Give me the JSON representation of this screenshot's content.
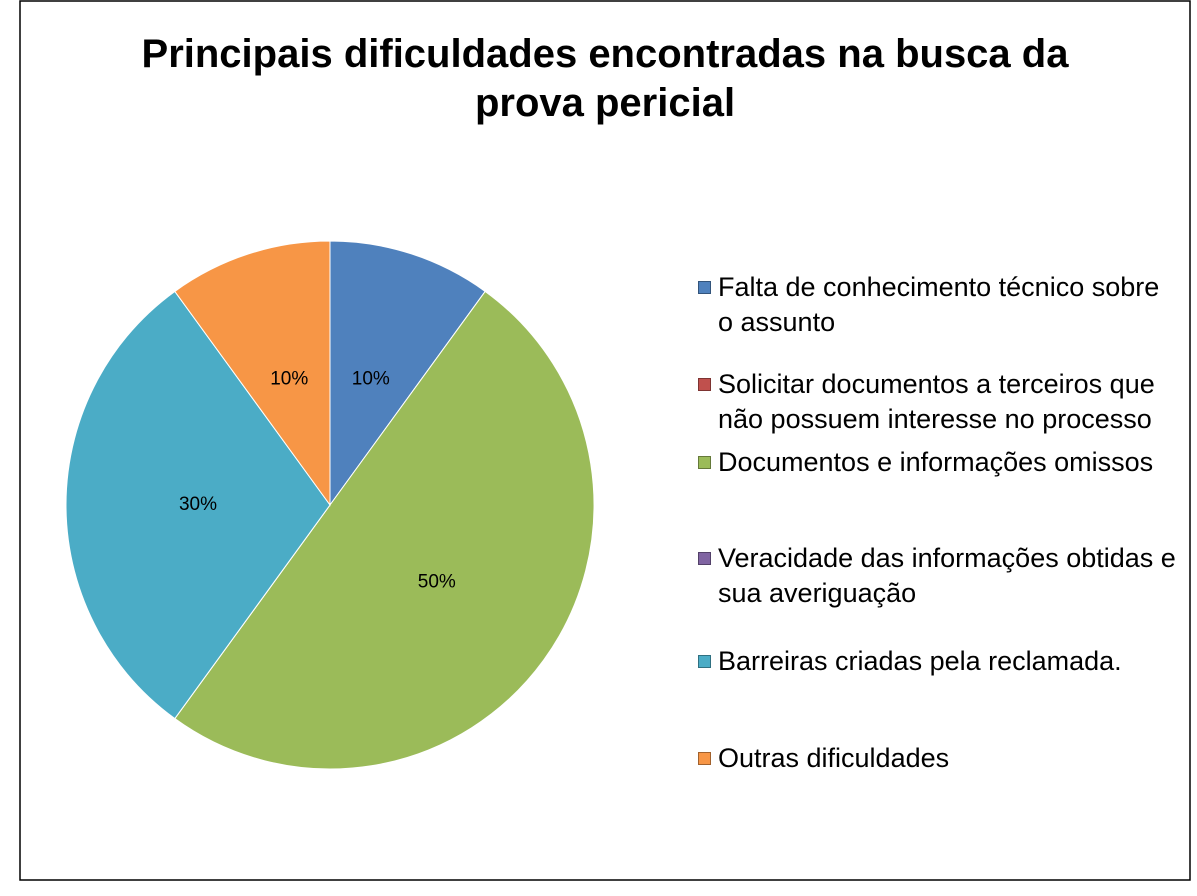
{
  "chart_data": {
    "type": "pie",
    "title": "Principais dificuldades encontradas na busca da prova pericial",
    "categories": [
      "Falta de conhecimento técnico sobre o assunto",
      "Solicitar documentos a terceiros que não possuem interesse no processo",
      "Documentos e informações omissos",
      "Veracidade das informações obtidas e sua averiguação",
      "Barreiras criadas pela reclamada.",
      "Outras dificuldades"
    ],
    "values": [
      10,
      0,
      50,
      0,
      30,
      10
    ],
    "value_labels": [
      "10%",
      null,
      "50%",
      null,
      "30%",
      "10%"
    ],
    "colors": [
      "#4f81bd",
      "#c0504d",
      "#9bbb59",
      "#8064a2",
      "#4bacc6",
      "#f79646"
    ],
    "legend": "right"
  }
}
